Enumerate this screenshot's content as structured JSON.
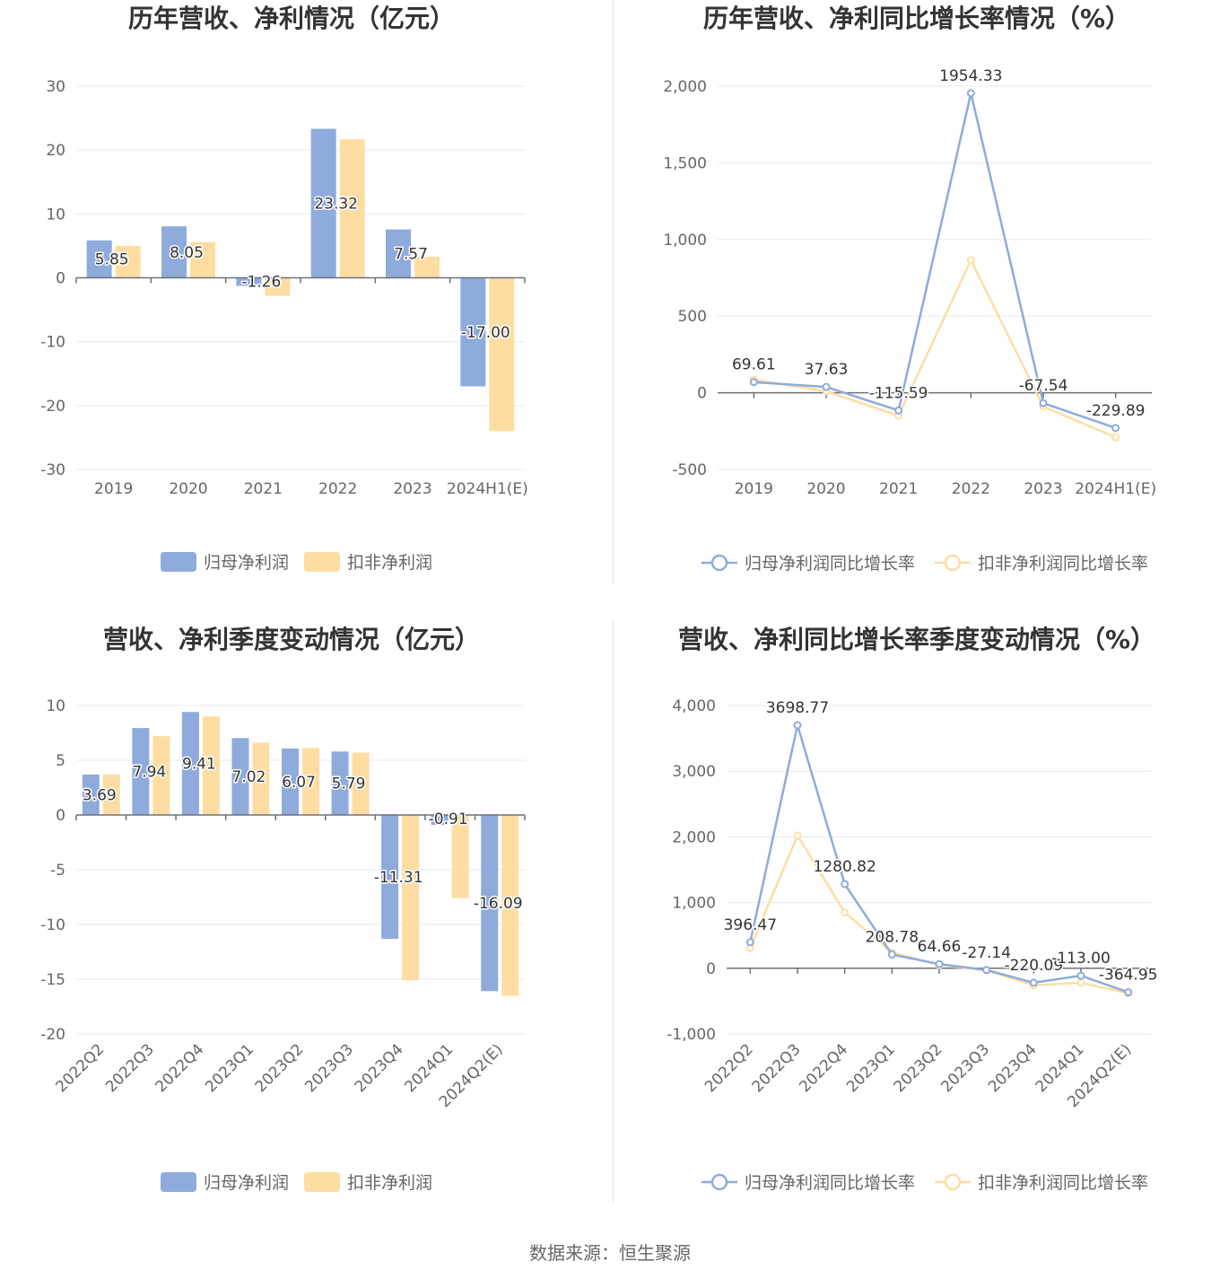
{
  "colors": {
    "series1": "#8eabdc",
    "series2": "#fedda3",
    "axis": "#6e7079",
    "grid": "#e6e9f0",
    "title": "#333333"
  },
  "footer": {
    "label": "数据来源：",
    "source": "恒生聚源"
  },
  "chart_data": [
    {
      "type": "bar",
      "title": "历年营收、净利情况（亿元）",
      "categories": [
        "2019",
        "2020",
        "2021",
        "2022",
        "2023",
        "2024H1(E)"
      ],
      "ylim": [
        -30,
        30
      ],
      "yticks": [
        30,
        20,
        10,
        0,
        -10,
        -20,
        -30
      ],
      "ytick_labels": [
        "30",
        "20",
        "10",
        "0",
        "-10",
        "-20",
        "-30"
      ],
      "grid": true,
      "legend_position": "bottom-center",
      "series": [
        {
          "name": "归母净利润",
          "values": [
            5.85,
            8.05,
            -1.26,
            23.32,
            7.57,
            -17.0
          ],
          "labels": [
            "5.85",
            "8.05",
            "-1.26",
            "23.32",
            "7.57",
            "-17.00"
          ]
        },
        {
          "name": "扣非净利润",
          "values": [
            5.0,
            5.6,
            -2.8,
            21.7,
            3.3,
            -24.0
          ]
        }
      ]
    },
    {
      "type": "line",
      "title": "历年营收、净利同比增长率情况（%）",
      "categories": [
        "2019",
        "2020",
        "2021",
        "2022",
        "2023",
        "2024H1(E)"
      ],
      "ylim": [
        -500,
        2000
      ],
      "yticks": [
        2000,
        1500,
        1000,
        500,
        0,
        -500
      ],
      "ytick_labels": [
        "2,000",
        "1,500",
        "1,000",
        "500",
        "0",
        "-500"
      ],
      "grid": true,
      "legend_position": "bottom-center",
      "series": [
        {
          "name": "归母净利润同比增长率",
          "values": [
            69.61,
            37.63,
            -115.59,
            1954.33,
            -67.54,
            -229.89
          ],
          "labels": [
            "69.61",
            "37.63",
            "-115.59",
            "1954.33",
            "-67.54",
            "-229.89"
          ]
        },
        {
          "name": "扣非净利润同比增长率",
          "values": [
            85,
            10,
            -150,
            865,
            -90,
            -290
          ]
        }
      ]
    },
    {
      "type": "bar",
      "title": "营收、净利季度变动情况（亿元）",
      "categories": [
        "2022Q2",
        "2022Q3",
        "2022Q4",
        "2023Q1",
        "2023Q2",
        "2023Q3",
        "2023Q4",
        "2024Q1",
        "2024Q2(E)"
      ],
      "ylim": [
        -20,
        10
      ],
      "yticks": [
        10,
        5,
        0,
        -5,
        -10,
        -15,
        -20
      ],
      "ytick_labels": [
        "10",
        "5",
        "0",
        "-5",
        "-10",
        "-15",
        "-20"
      ],
      "grid": true,
      "legend_position": "bottom-center",
      "series": [
        {
          "name": "归母净利润",
          "values": [
            3.69,
            7.94,
            9.41,
            7.02,
            6.07,
            5.79,
            -11.31,
            -0.91,
            -16.09
          ],
          "labels": [
            "3.69",
            "7.94",
            "9.41",
            "7.02",
            "6.07",
            "5.79",
            "-11.31",
            "-0.91",
            "-16.09"
          ]
        },
        {
          "name": "扣非净利润",
          "values": [
            3.7,
            7.2,
            9.0,
            6.6,
            6.1,
            5.7,
            -15.1,
            -7.6,
            -16.5
          ]
        }
      ]
    },
    {
      "type": "line",
      "title": "营收、净利同比增长率季度变动情况（%）",
      "categories": [
        "2022Q2",
        "2022Q3",
        "2022Q4",
        "2023Q1",
        "2023Q2",
        "2023Q3",
        "2023Q4",
        "2024Q1",
        "2024Q2(E)"
      ],
      "ylim": [
        -1000,
        4000
      ],
      "yticks": [
        4000,
        3000,
        2000,
        1000,
        0,
        -1000
      ],
      "ytick_labels": [
        "4,000",
        "3,000",
        "2,000",
        "1,000",
        "0",
        "-1,000"
      ],
      "grid": true,
      "legend_position": "bottom-center",
      "series": [
        {
          "name": "归母净利润同比增长率",
          "values": [
            396.47,
            3698.77,
            1280.82,
            208.78,
            64.66,
            -27.14,
            -220.09,
            -113.0,
            -364.95
          ],
          "labels": [
            "396.47",
            "3698.77",
            "1280.82",
            "208.78",
            "64.66",
            "-27.14",
            "-220.09",
            "-113.00",
            "-364.95"
          ]
        },
        {
          "name": "扣非净利润同比增长率",
          "values": [
            310,
            2020,
            850,
            240,
            50,
            -30,
            -260,
            -220,
            -380
          ]
        }
      ]
    }
  ]
}
